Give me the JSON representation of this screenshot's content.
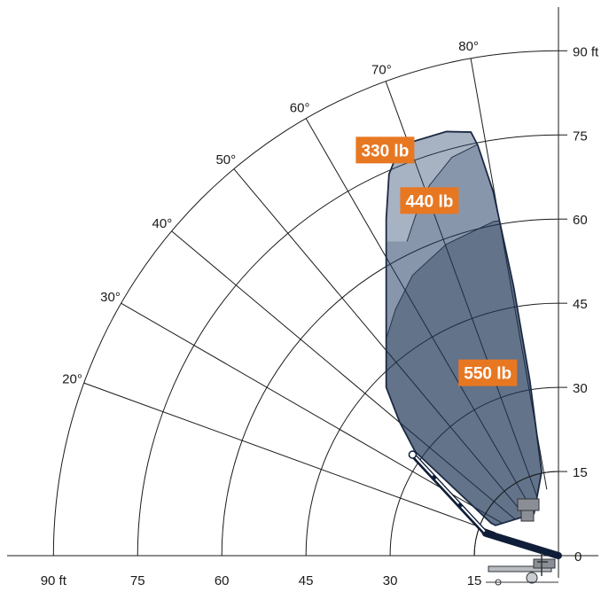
{
  "chart_data": {
    "type": "working-envelope",
    "unit": "ft",
    "axis_max": 90,
    "horizontal_ticks": [
      {
        "value": 90,
        "label": "90 ft"
      },
      {
        "value": 75,
        "label": "75"
      },
      {
        "value": 60,
        "label": "60"
      },
      {
        "value": 45,
        "label": "45"
      },
      {
        "value": 30,
        "label": "30"
      },
      {
        "value": 15,
        "label": "15"
      }
    ],
    "vertical_ticks": [
      {
        "value": 90,
        "label": "90 ft"
      },
      {
        "value": 75,
        "label": "75"
      },
      {
        "value": 60,
        "label": "60"
      },
      {
        "value": 45,
        "label": "45"
      },
      {
        "value": 30,
        "label": "30"
      },
      {
        "value": 15,
        "label": "15"
      },
      {
        "value": 0,
        "label": "0"
      }
    ],
    "arc_radii": [
      15,
      30,
      45,
      60,
      75,
      90
    ],
    "angle_lines": [
      {
        "deg": 20,
        "label": "20°"
      },
      {
        "deg": 30,
        "label": "30°"
      },
      {
        "deg": 40,
        "label": "40°"
      },
      {
        "deg": 50,
        "label": "50°"
      },
      {
        "deg": 60,
        "label": "60°"
      },
      {
        "deg": 70,
        "label": "70°"
      },
      {
        "deg": 80,
        "label": "80°"
      }
    ],
    "load_zones": [
      {
        "label": "330 lb",
        "color": "#a7b3c3",
        "label_at": {
          "x": 30.9,
          "y": 72.3
        }
      },
      {
        "label": "440 lb",
        "color": "#8796aa",
        "label_at": {
          "x": 23.0,
          "y": 63.3
        }
      },
      {
        "label": "550 lb",
        "color": "#637389",
        "label_at": {
          "x": 12.6,
          "y": 32.6
        }
      }
    ],
    "envelope_outer": [
      [
        4.35,
        7.5
      ],
      [
        3.0,
        15.0
      ],
      [
        5.1,
        31.2
      ],
      [
        8.0,
        48.0
      ],
      [
        11.6,
        64.8
      ],
      [
        14.4,
        73.2
      ],
      [
        15.6,
        75.5
      ],
      [
        20.0,
        75.6
      ],
      [
        26.0,
        73.8
      ],
      [
        29.0,
        71.0
      ],
      [
        30.2,
        68.0
      ],
      [
        30.7,
        60.0
      ],
      [
        30.7,
        30.0
      ],
      [
        28.3,
        23.8
      ],
      [
        25.5,
        18.5
      ],
      [
        12.0,
        5.8
      ],
      [
        11.2,
        5.4
      ]
    ],
    "zone_550_top": [
      [
        30.7,
        38.7
      ],
      [
        29.0,
        44.0
      ],
      [
        26.0,
        50.0
      ],
      [
        20.0,
        55.5
      ],
      [
        11.5,
        59.6
      ],
      [
        8.0,
        59.9
      ],
      [
        5.6,
        59.6
      ]
    ],
    "zone_440_top": [
      [
        27.0,
        56.0
      ],
      [
        25.0,
        62.0
      ],
      [
        23.0,
        66.0
      ],
      [
        19.0,
        71.0
      ],
      [
        15.6,
        72.7
      ],
      [
        12.0,
        74.6
      ],
      [
        10.4,
        75.5
      ],
      [
        5.6,
        75.5
      ]
    ],
    "boom_end": [
      [
        13.0,
        4.0
      ],
      [
        26.0,
        18.0
      ]
    ],
    "accent_color": "#e87722",
    "line_color": "#1a1a1a"
  }
}
